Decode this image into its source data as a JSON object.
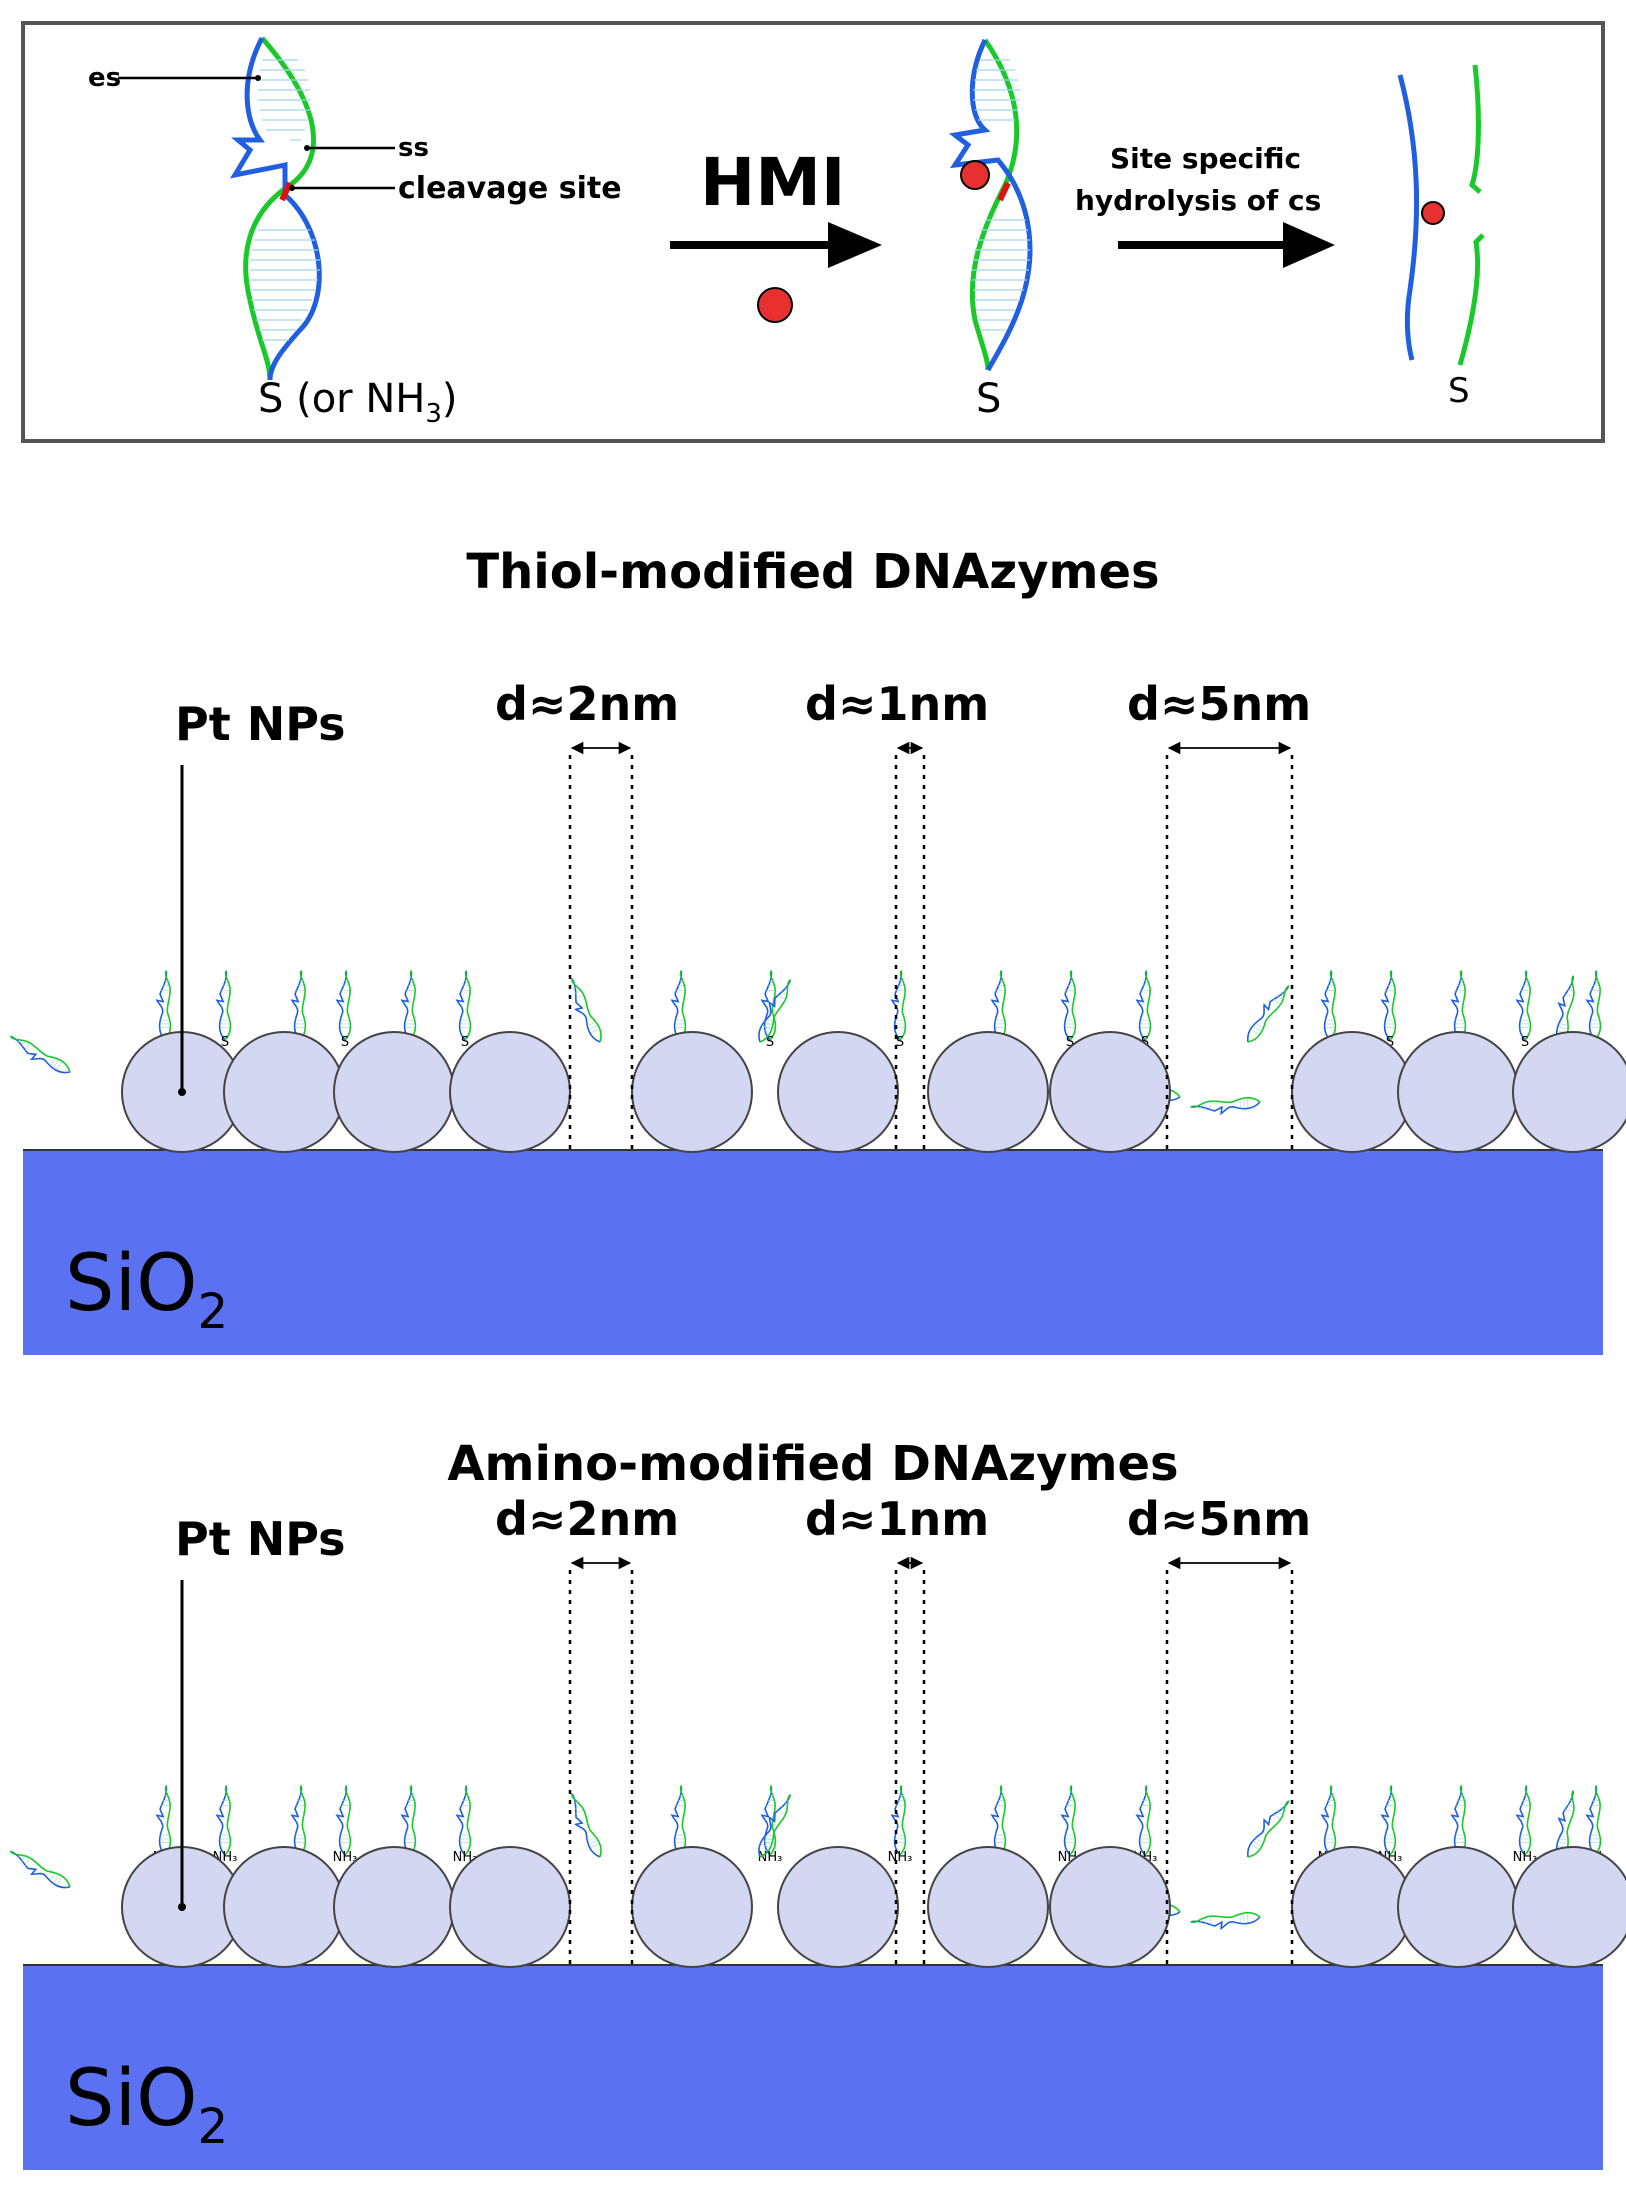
{
  "top_panel": {
    "label_es": "es",
    "label_ss": "ss",
    "label_cleavage": "cleavage site",
    "label_s_or": "S (or NH",
    "sub_3": "3",
    "paren_close": ")",
    "arrow1_label": "HMI",
    "arrow2_line1": "Site specific",
    "arrow2_line2": "hydrolysis of cs",
    "label_s_mid": "S",
    "label_s_right": "S"
  },
  "panel_thiol": {
    "title": "Thiol-modified DNAzymes",
    "pt_label": "Pt NPs",
    "gaps": [
      "d≈2nm",
      "d≈1nm",
      "d≈5nm"
    ],
    "linker": "S",
    "substrate_main": "SiO",
    "substrate_sub": "2"
  },
  "panel_amino": {
    "title": "Amino-modified DNAzymes",
    "pt_label": "Pt NPs",
    "gaps": [
      "d≈2nm",
      "d≈1nm",
      "d≈5nm"
    ],
    "linker": "NH₃",
    "substrate_main": "SiO",
    "substrate_sub": "2"
  },
  "colors": {
    "enzyme_strand": "#1f5fe0",
    "substrate_strand": "#19c92a",
    "cleavage": "#e01010",
    "metal_ion": "#e83030",
    "nanoparticle": "#d3d7f2",
    "sio2": "#5a72f2",
    "frame": "#555555"
  }
}
